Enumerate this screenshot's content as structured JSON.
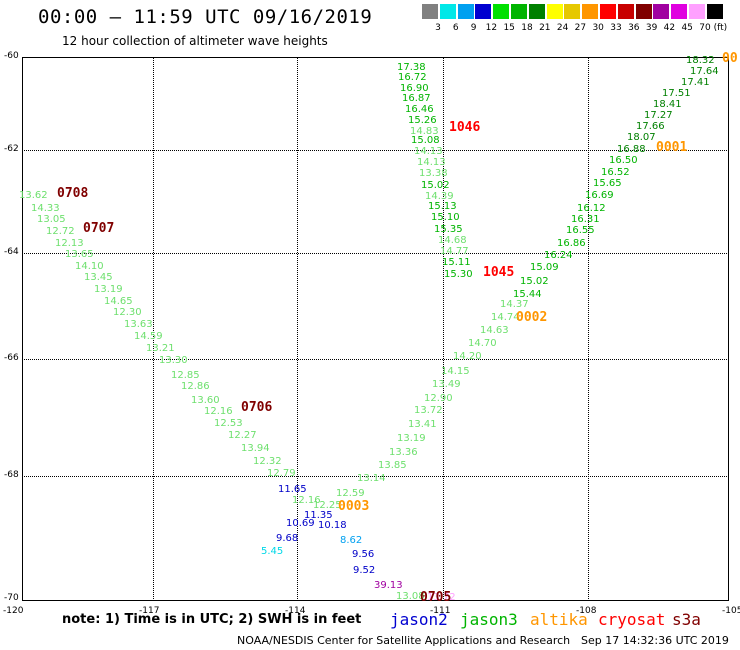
{
  "title": "00:00 – 11:59 UTC 09/16/2019",
  "subtitle": "12 hour collection of altimeter wave heights",
  "colorbar": {
    "unit": "(ft)",
    "stops": [
      {
        "label": "3",
        "color": "#808080"
      },
      {
        "label": "6",
        "color": "#00e8e8"
      },
      {
        "label": "9",
        "color": "#00a0f0"
      },
      {
        "label": "12",
        "color": "#0000d0"
      },
      {
        "label": "15",
        "color": "#00e000"
      },
      {
        "label": "18",
        "color": "#00b400"
      },
      {
        "label": "21",
        "color": "#008000"
      },
      {
        "label": "24",
        "color": "#ffff00"
      },
      {
        "label": "27",
        "color": "#e6c800"
      },
      {
        "label": "30",
        "color": "#ff9600"
      },
      {
        "label": "33",
        "color": "#ff0000"
      },
      {
        "label": "36",
        "color": "#c80000"
      },
      {
        "label": "39",
        "color": "#800000"
      },
      {
        "label": "42",
        "color": "#a000a0"
      },
      {
        "label": "45",
        "color": "#e000e0"
      },
      {
        "label": "70",
        "color": "#ffa0ff"
      },
      {
        "label": "",
        "color": "#000000"
      }
    ]
  },
  "axes": {
    "lat_labels": [
      "-60",
      "-62",
      "-64",
      "-66",
      "-68",
      "-70"
    ],
    "lon_labels": [
      "-120",
      "-117",
      "-114",
      "-111",
      "-108",
      "-105"
    ],
    "lat_range": [
      -70,
      -60
    ],
    "lon_range": [
      -120,
      -105
    ]
  },
  "tracks": {
    "left": [
      {
        "v": "13.62",
        "c": "#6ee06e"
      },
      {
        "v": "14.33",
        "c": "#6ee06e"
      },
      {
        "v": "13.05",
        "c": "#6ee06e"
      },
      {
        "v": "12.72",
        "c": "#6ee06e"
      },
      {
        "v": "12.13",
        "c": "#6ee06e"
      },
      {
        "v": "13.65",
        "c": "#6ee06e"
      },
      {
        "v": "14.10",
        "c": "#6ee06e"
      },
      {
        "v": "13.45",
        "c": "#6ee06e"
      },
      {
        "v": "13.19",
        "c": "#6ee06e"
      },
      {
        "v": "14.65",
        "c": "#6ee06e"
      },
      {
        "v": "12.30",
        "c": "#6ee06e"
      },
      {
        "v": "13.63",
        "c": "#6ee06e"
      },
      {
        "v": "14.59",
        "c": "#6ee06e"
      },
      {
        "v": "13.21",
        "c": "#6ee06e"
      },
      {
        "v": "13.30",
        "c": "#6ee06e"
      },
      {
        "v": "12.85",
        "c": "#6ee06e"
      },
      {
        "v": "12.86",
        "c": "#6ee06e"
      },
      {
        "v": "13.60",
        "c": "#6ee06e"
      },
      {
        "v": "12.16",
        "c": "#6ee06e"
      },
      {
        "v": "12.53",
        "c": "#6ee06e"
      },
      {
        "v": "12.27",
        "c": "#6ee06e"
      },
      {
        "v": "13.94",
        "c": "#6ee06e"
      },
      {
        "v": "12.32",
        "c": "#6ee06e"
      },
      {
        "v": "12.79",
        "c": "#6ee06e"
      },
      {
        "v": "11.65",
        "c": "#0000c8"
      },
      {
        "v": "12.16",
        "c": "#6ee06e"
      },
      {
        "v": "11.35",
        "c": "#0000c8"
      },
      {
        "v": "10.69",
        "c": "#0000c8"
      },
      {
        "v": "9.68",
        "c": "#0000c8"
      },
      {
        "v": "5.45",
        "c": "#00d8e8"
      }
    ],
    "top": [
      {
        "v": "17.38",
        "c": "#00b400"
      },
      {
        "v": "16.72",
        "c": "#00b400"
      },
      {
        "v": "16.90",
        "c": "#00b400"
      },
      {
        "v": "16.87",
        "c": "#00b400"
      },
      {
        "v": "16.46",
        "c": "#00b400"
      },
      {
        "v": "15.26",
        "c": "#00b400"
      },
      {
        "v": "14.83",
        "c": "#6ee06e"
      },
      {
        "v": "15.08",
        "c": "#00b400"
      },
      {
        "v": "14.13",
        "c": "#6ee06e"
      },
      {
        "v": "14.13",
        "c": "#6ee06e"
      },
      {
        "v": "13.38",
        "c": "#6ee06e"
      },
      {
        "v": "15.02",
        "c": "#00b400"
      },
      {
        "v": "14.39",
        "c": "#6ee06e"
      },
      {
        "v": "15.13",
        "c": "#00b400"
      },
      {
        "v": "15.10",
        "c": "#00b400"
      },
      {
        "v": "15.35",
        "c": "#00b400"
      },
      {
        "v": "14.68",
        "c": "#6ee06e"
      },
      {
        "v": "14.77",
        "c": "#6ee06e"
      },
      {
        "v": "15.11",
        "c": "#00b400"
      },
      {
        "v": "15.30",
        "c": "#00b400"
      }
    ],
    "right": [
      {
        "v": "18.32",
        "c": "#008000"
      },
      {
        "v": "17.64",
        "c": "#008000"
      },
      {
        "v": "17.41",
        "c": "#008000"
      },
      {
        "v": "17.51",
        "c": "#008000"
      },
      {
        "v": "18.41",
        "c": "#008000"
      },
      {
        "v": "17.27",
        "c": "#008000"
      },
      {
        "v": "17.66",
        "c": "#008000"
      },
      {
        "v": "18.07",
        "c": "#008000"
      },
      {
        "v": "16.88",
        "c": "#008000"
      },
      {
        "v": "16.50",
        "c": "#00b400"
      },
      {
        "v": "16.52",
        "c": "#00b400"
      },
      {
        "v": "15.65",
        "c": "#00b400"
      },
      {
        "v": "16.69",
        "c": "#00b400"
      },
      {
        "v": "16.12",
        "c": "#00b400"
      },
      {
        "v": "16.31",
        "c": "#00b400"
      },
      {
        "v": "16.55",
        "c": "#00b400"
      },
      {
        "v": "16.86",
        "c": "#00b400"
      },
      {
        "v": "16.24",
        "c": "#00b400"
      },
      {
        "v": "15.09",
        "c": "#00b400"
      },
      {
        "v": "15.02",
        "c": "#00b400"
      },
      {
        "v": "15.44",
        "c": "#00b400"
      },
      {
        "v": "14.37",
        "c": "#6ee06e"
      },
      {
        "v": "14.74",
        "c": "#6ee06e"
      },
      {
        "v": "14.63",
        "c": "#6ee06e"
      },
      {
        "v": "14.70",
        "c": "#6ee06e"
      },
      {
        "v": "14.20",
        "c": "#6ee06e"
      },
      {
        "v": "14.15",
        "c": "#6ee06e"
      },
      {
        "v": "13.49",
        "c": "#6ee06e"
      },
      {
        "v": "12.90",
        "c": "#6ee06e"
      },
      {
        "v": "13.72",
        "c": "#6ee06e"
      },
      {
        "v": "13.41",
        "c": "#6ee06e"
      },
      {
        "v": "13.19",
        "c": "#6ee06e"
      },
      {
        "v": "13.36",
        "c": "#6ee06e"
      },
      {
        "v": "13.85",
        "c": "#6ee06e"
      },
      {
        "v": "13.14",
        "c": "#6ee06e"
      },
      {
        "v": "12.59",
        "c": "#6ee06e"
      },
      {
        "v": "12.25",
        "c": "#6ee06e"
      },
      {
        "v": "10.18",
        "c": "#0000c8"
      },
      {
        "v": "8.62",
        "c": "#00a0f0"
      },
      {
        "v": "9.56",
        "c": "#0000c8"
      },
      {
        "v": "9.52",
        "c": "#0000c8"
      },
      {
        "v": "39.13",
        "c": "#a000a0"
      },
      {
        "v": "13.08",
        "c": "#6ee06e"
      },
      {
        "v": "13.72",
        "c": "#ffa0ff"
      }
    ]
  },
  "time_labels": [
    {
      "t": "0708",
      "c": "#800000"
    },
    {
      "t": "0707",
      "c": "#800000"
    },
    {
      "t": "0706",
      "c": "#800000"
    },
    {
      "t": "1046",
      "c": "#ff0000"
    },
    {
      "t": "1045",
      "c": "#ff0000"
    },
    {
      "t": "0001",
      "c": "#ff9600"
    },
    {
      "t": "0002",
      "c": "#ff9600"
    },
    {
      "t": "0003",
      "c": "#ff9600"
    },
    {
      "t": "0705",
      "c": "#800000"
    },
    {
      "t": "00",
      "c": "#ff9600"
    }
  ],
  "note": "note: 1) Time is in UTC; 2) SWH is in feet",
  "satellites": [
    {
      "name": "jason2",
      "color": "#0000d0"
    },
    {
      "name": "jason3",
      "color": "#00b400"
    },
    {
      "name": "altika",
      "color": "#ff9600"
    },
    {
      "name": "cryosat",
      "color": "#ff0000"
    },
    {
      "name": "s3a",
      "color": "#800000"
    }
  ],
  "footer": "NOAA/NESDIS Center for Satellite Applications and Research",
  "footer_date": "Sep 17 14:32:36 UTC 2019"
}
